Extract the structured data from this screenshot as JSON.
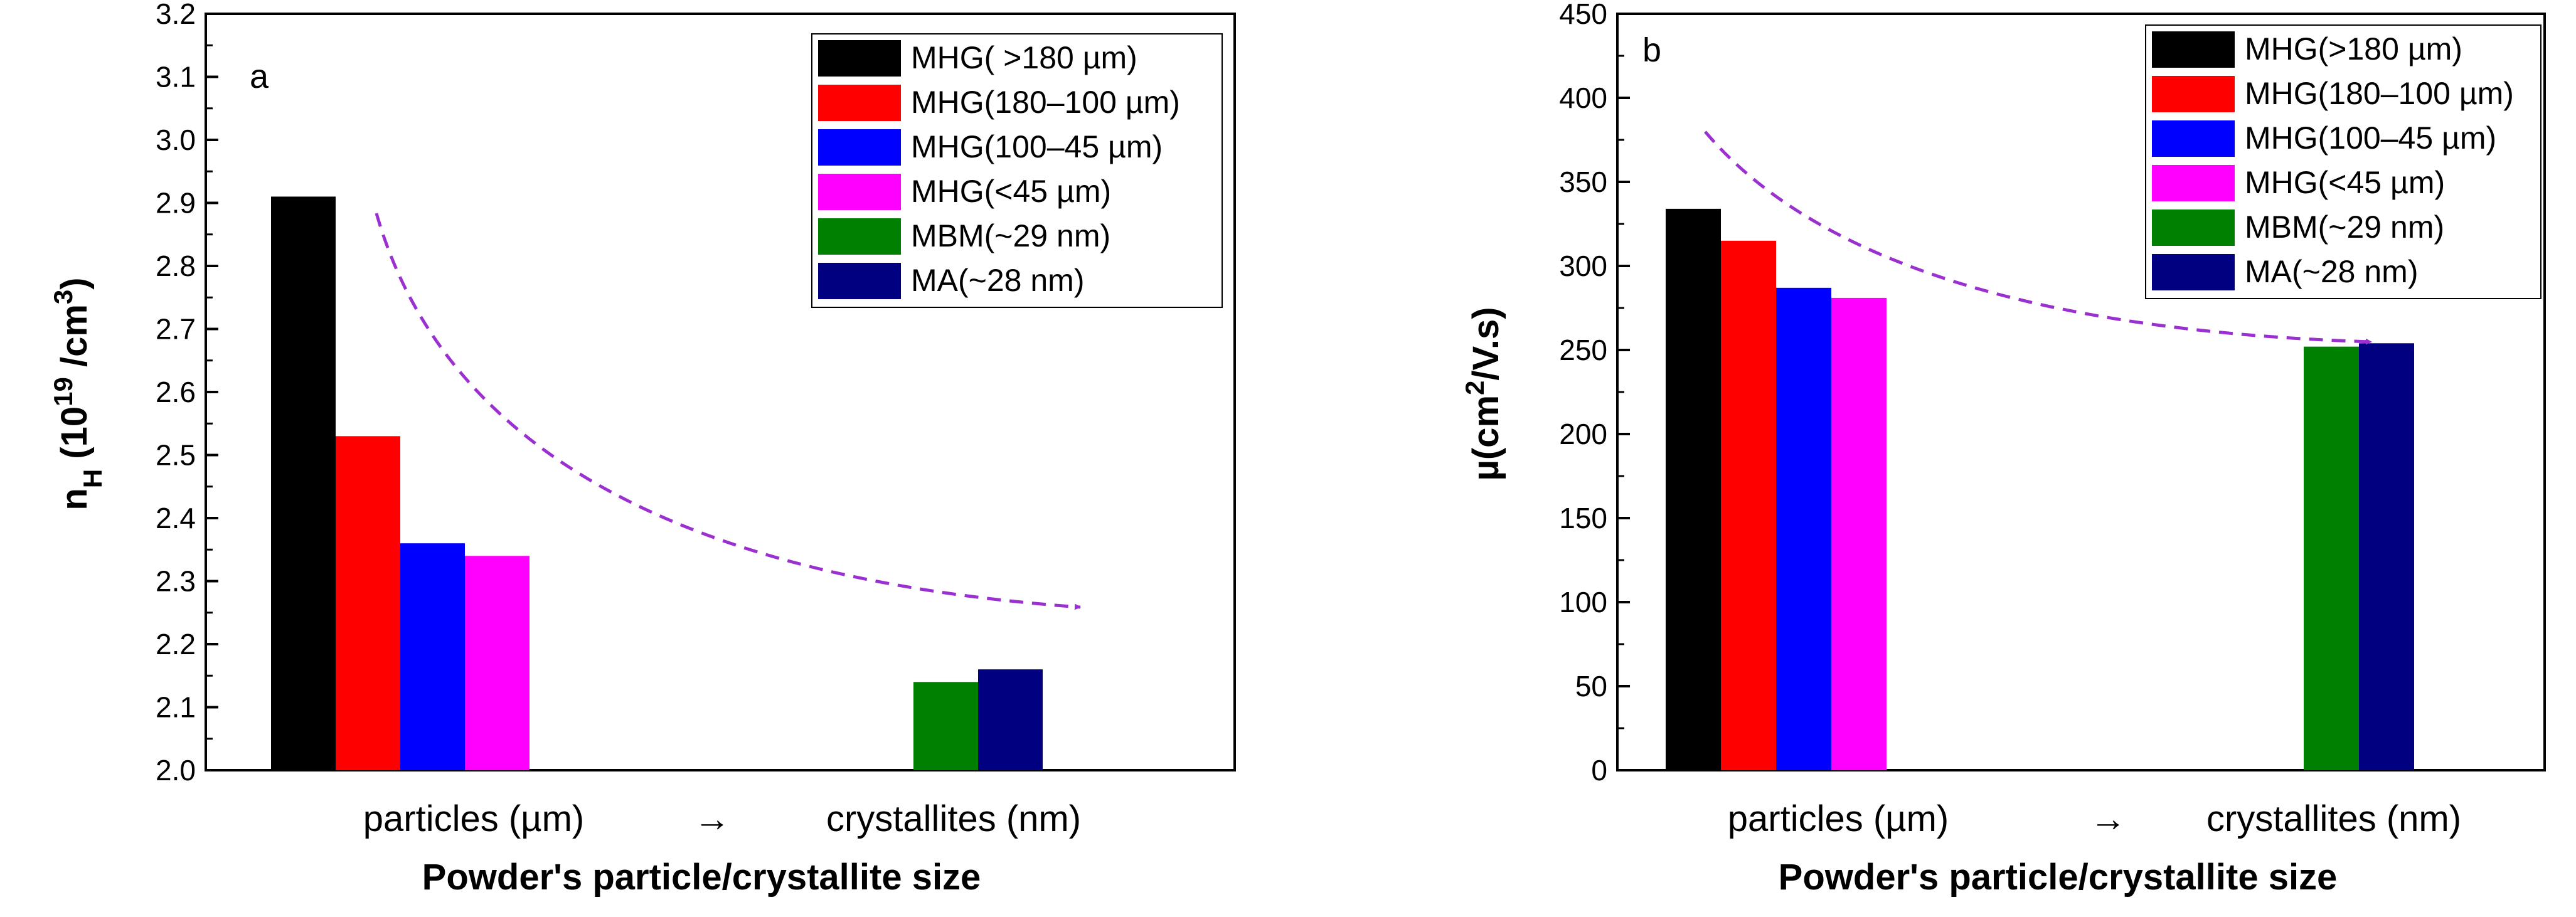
{
  "figure": {
    "arrow_label": "→"
  },
  "chart_data": [
    {
      "type": "bar",
      "panel_label": "a",
      "ylabel_main": "n",
      "ylabel_sub": "H",
      "ylabel_mid": " (10",
      "ylabel_sup": "19",
      "ylabel_unit": " /cm",
      "ylabel_sup2": "3",
      "ylabel_end": ")",
      "xlabel": "Powder's particle/crystallite size",
      "category_labels": [
        "particles (µm)",
        "crystallites (nm)"
      ],
      "ylim": [
        2.0,
        3.2
      ],
      "yticks": [
        2.0,
        2.1,
        2.2,
        2.3,
        2.4,
        2.5,
        2.6,
        2.7,
        2.8,
        2.9,
        3.0,
        3.1,
        3.2
      ],
      "ytick_labels": [
        "2.0",
        "2.1",
        "2.2",
        "2.3",
        "2.4",
        "2.5",
        "2.6",
        "2.7",
        "2.8",
        "2.9",
        "3.0",
        "3.1",
        "3.2"
      ],
      "series": [
        {
          "name": "MHG( >180 µm)",
          "color": "#000000",
          "group": 0,
          "value": 2.91
        },
        {
          "name": "MHG(180–100 µm)",
          "color": "#ff0000",
          "group": 0,
          "value": 2.53
        },
        {
          "name": "MHG(100–45 µm)",
          "color": "#0000ff",
          "group": 0,
          "value": 2.36
        },
        {
          "name": "MHG(<45 µm)",
          "color": "#ff00ff",
          "group": 0,
          "value": 2.34
        },
        {
          "name": "MBM(~29 nm)",
          "color": "#008000",
          "group": 1,
          "value": 2.14
        },
        {
          "name": "MA(~28 nm)",
          "color": "#000080",
          "group": 1,
          "value": 2.16
        }
      ],
      "trend_arrow_color": "#9b30d0"
    },
    {
      "type": "bar",
      "panel_label": "b",
      "ylabel_main": "µ(cm",
      "ylabel_sup": "2",
      "ylabel_end": "/V.s)",
      "xlabel": "Powder's particle/crystallite size",
      "category_labels": [
        "particles (µm)",
        "crystallites (nm)"
      ],
      "ylim": [
        0,
        450
      ],
      "yticks": [
        0,
        50,
        100,
        150,
        200,
        250,
        300,
        350,
        400,
        450
      ],
      "ytick_labels": [
        "0",
        "50",
        "100",
        "150",
        "200",
        "250",
        "300",
        "350",
        "400",
        "450"
      ],
      "series": [
        {
          "name": "MHG(>180 µm)",
          "color": "#000000",
          "group": 0,
          "value": 334
        },
        {
          "name": "MHG(180–100 µm)",
          "color": "#ff0000",
          "group": 0,
          "value": 315
        },
        {
          "name": "MHG(100–45 µm)",
          "color": "#0000ff",
          "group": 0,
          "value": 287
        },
        {
          "name": "MHG(<45 µm)",
          "color": "#ff00ff",
          "group": 0,
          "value": 281
        },
        {
          "name": "MBM(~29 nm)",
          "color": "#008000",
          "group": 1,
          "value": 252
        },
        {
          "name": "MA(~28 nm)",
          "color": "#000080",
          "group": 1,
          "value": 254
        }
      ],
      "trend_arrow_color": "#9b30d0"
    }
  ]
}
